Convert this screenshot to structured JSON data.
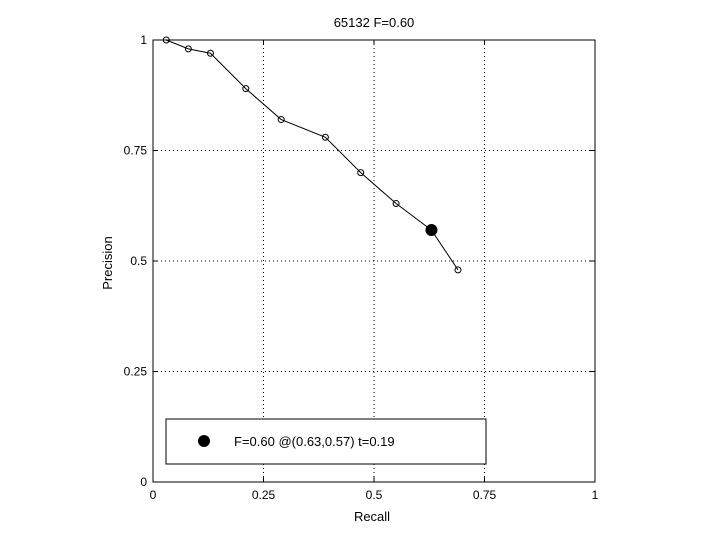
{
  "chart_data": {
    "type": "line",
    "title": "65132 F=0.60",
    "xlabel": "Recall",
    "ylabel": "Precision",
    "xlim": [
      0,
      1
    ],
    "ylim": [
      0,
      1
    ],
    "xticks": [
      0,
      0.25,
      0.5,
      0.75,
      1
    ],
    "yticks": [
      0,
      0.25,
      0.5,
      0.75,
      1
    ],
    "xtick_labels": [
      "0",
      "0.25",
      "0.5",
      "0.75",
      "1"
    ],
    "ytick_labels": [
      "0",
      "0.25",
      "0.5",
      "0.75",
      "1"
    ],
    "grid": true,
    "series": [
      {
        "x": [
          0.03,
          0.08,
          0.13,
          0.21,
          0.29,
          0.39,
          0.47,
          0.55,
          0.63,
          0.69
        ],
        "y": [
          1.0,
          0.98,
          0.97,
          0.89,
          0.82,
          0.78,
          0.7,
          0.63,
          0.57,
          0.48
        ],
        "color": "#000000",
        "marker": "open-circle"
      }
    ],
    "highlight_point": {
      "x": 0.63,
      "y": 0.57,
      "color": "#000000",
      "marker": "filled-circle"
    },
    "legend": {
      "placement": "bottom-left",
      "entries": [
        "F=0.60 @(0.63,0.57) t=0.19"
      ]
    }
  }
}
